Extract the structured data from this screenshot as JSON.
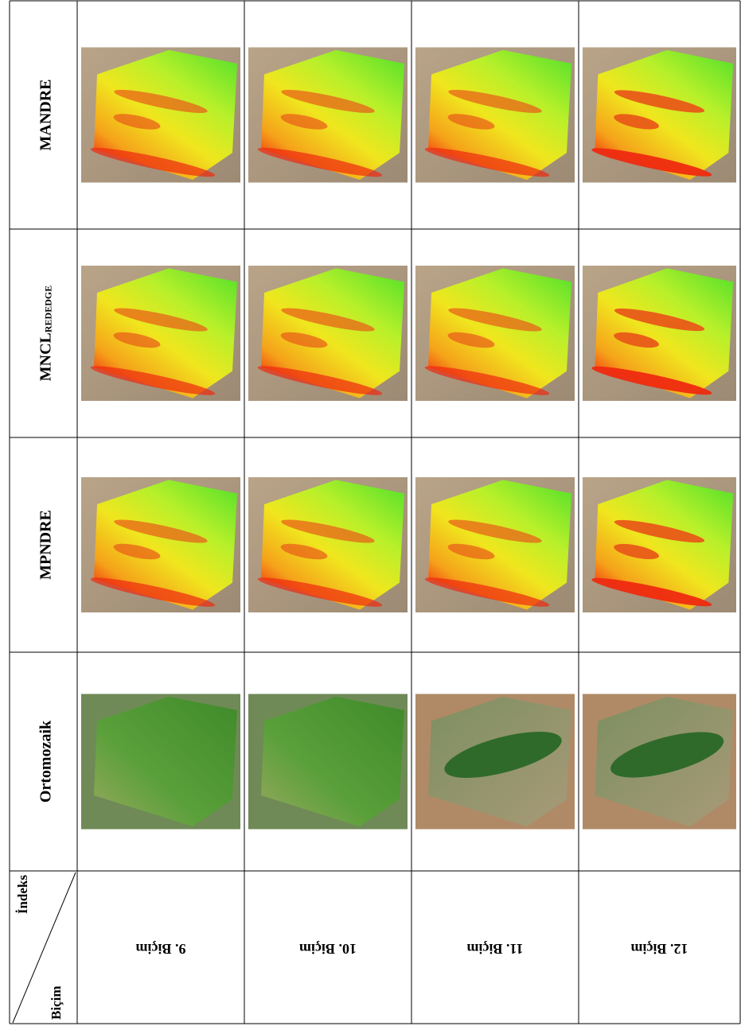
{
  "table": {
    "row_labels": [
      {
        "text": "MANDRE"
      },
      {
        "text": "MNCL",
        "subscript": "REDEDGE"
      },
      {
        "text": "MPNDRE"
      },
      {
        "text": "Ortomozaik"
      }
    ],
    "corner": {
      "top": "İndeks",
      "bottom": "Biçim"
    },
    "column_labels": [
      "9. Biçim",
      "10. Biçim",
      "11. Biçim",
      "12. Biçim"
    ]
  }
}
